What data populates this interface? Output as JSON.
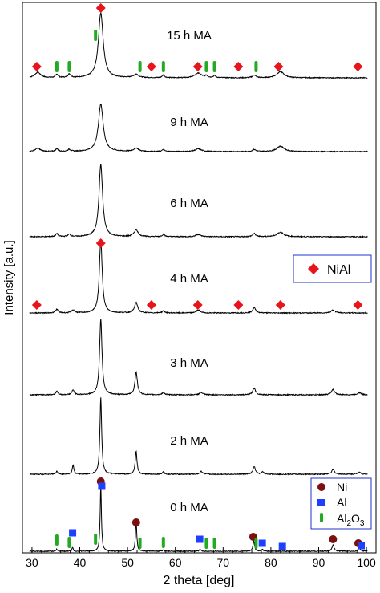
{
  "chart_data": {
    "type": "line",
    "xlabel": "2 theta [deg]",
    "ylabel": "Intensity [a.u.]",
    "xlim": [
      28,
      102
    ],
    "xticks": [
      30,
      40,
      50,
      60,
      70,
      80,
      90,
      100
    ],
    "grid": false,
    "colors": {
      "nial": "#e8141c",
      "ni": "#7a1010",
      "al": "#1f3fff",
      "al2o3": "#22aa22",
      "line": "#000000"
    },
    "series": [
      {
        "name": "15 h MA",
        "peaks": [
          {
            "x": 31.2,
            "h": 0.08,
            "w": 0.7
          },
          {
            "x": 35.2,
            "h": 0.05,
            "w": 0.3
          },
          {
            "x": 37.8,
            "h": 0.05,
            "w": 0.35
          },
          {
            "x": 44.4,
            "h": 0.95,
            "w": 0.6
          },
          {
            "x": 51.8,
            "h": 0.05,
            "w": 0.6
          },
          {
            "x": 57.5,
            "h": 0.04,
            "w": 0.3
          },
          {
            "x": 64.8,
            "h": 0.07,
            "w": 0.8
          },
          {
            "x": 66.5,
            "h": 0.03,
            "w": 0.3
          },
          {
            "x": 68.2,
            "h": 0.03,
            "w": 0.3
          },
          {
            "x": 76.5,
            "h": 0.04,
            "w": 0.4
          },
          {
            "x": 82.0,
            "h": 0.09,
            "w": 0.9
          }
        ]
      },
      {
        "name": "9 h MA",
        "peaks": [
          {
            "x": 31.2,
            "h": 0.05,
            "w": 0.6
          },
          {
            "x": 35.2,
            "h": 0.04,
            "w": 0.3
          },
          {
            "x": 37.8,
            "h": 0.03,
            "w": 0.35
          },
          {
            "x": 44.4,
            "h": 0.7,
            "w": 0.6
          },
          {
            "x": 51.8,
            "h": 0.05,
            "w": 0.6
          },
          {
            "x": 57.5,
            "h": 0.03,
            "w": 0.3
          },
          {
            "x": 64.8,
            "h": 0.04,
            "w": 0.8
          },
          {
            "x": 76.5,
            "h": 0.03,
            "w": 0.4
          },
          {
            "x": 82.0,
            "h": 0.08,
            "w": 0.9
          }
        ]
      },
      {
        "name": "6 h MA",
        "peaks": [
          {
            "x": 35.2,
            "h": 0.04,
            "w": 0.3
          },
          {
            "x": 37.8,
            "h": 0.03,
            "w": 0.35
          },
          {
            "x": 44.4,
            "h": 0.95,
            "w": 0.45
          },
          {
            "x": 51.8,
            "h": 0.09,
            "w": 0.5
          },
          {
            "x": 57.5,
            "h": 0.03,
            "w": 0.3
          },
          {
            "x": 64.8,
            "h": 0.03,
            "w": 0.6
          },
          {
            "x": 76.5,
            "h": 0.04,
            "w": 0.4
          },
          {
            "x": 82.0,
            "h": 0.06,
            "w": 0.8
          }
        ]
      },
      {
        "name": "4 h MA",
        "peaks": [
          {
            "x": 35.2,
            "h": 0.05,
            "w": 0.3
          },
          {
            "x": 38.6,
            "h": 0.04,
            "w": 0.35
          },
          {
            "x": 44.4,
            "h": 1.0,
            "w": 0.35
          },
          {
            "x": 51.8,
            "h": 0.14,
            "w": 0.4
          },
          {
            "x": 57.5,
            "h": 0.03,
            "w": 0.3
          },
          {
            "x": 64.8,
            "h": 0.04,
            "w": 0.5
          },
          {
            "x": 76.5,
            "h": 0.07,
            "w": 0.4
          },
          {
            "x": 93.0,
            "h": 0.04,
            "w": 0.5
          }
        ]
      },
      {
        "name": "3 h MA",
        "peaks": [
          {
            "x": 35.2,
            "h": 0.05,
            "w": 0.25
          },
          {
            "x": 38.6,
            "h": 0.06,
            "w": 0.3
          },
          {
            "x": 44.4,
            "h": 1.0,
            "w": 0.3
          },
          {
            "x": 51.8,
            "h": 0.3,
            "w": 0.3
          },
          {
            "x": 57.5,
            "h": 0.03,
            "w": 0.3
          },
          {
            "x": 65.4,
            "h": 0.03,
            "w": 0.4
          },
          {
            "x": 76.5,
            "h": 0.09,
            "w": 0.35
          },
          {
            "x": 93.0,
            "h": 0.07,
            "w": 0.4
          },
          {
            "x": 98.5,
            "h": 0.03,
            "w": 0.4
          }
        ]
      },
      {
        "name": "2 h MA",
        "peaks": [
          {
            "x": 35.2,
            "h": 0.04,
            "w": 0.2
          },
          {
            "x": 38.6,
            "h": 0.12,
            "w": 0.2
          },
          {
            "x": 44.4,
            "h": 1.0,
            "w": 0.22
          },
          {
            "x": 51.8,
            "h": 0.3,
            "w": 0.22
          },
          {
            "x": 57.5,
            "h": 0.03,
            "w": 0.25
          },
          {
            "x": 65.4,
            "h": 0.04,
            "w": 0.3
          },
          {
            "x": 76.5,
            "h": 0.1,
            "w": 0.3
          },
          {
            "x": 78.3,
            "h": 0.03,
            "w": 0.3
          },
          {
            "x": 93.0,
            "h": 0.06,
            "w": 0.35
          },
          {
            "x": 98.5,
            "h": 0.03,
            "w": 0.35
          }
        ]
      },
      {
        "name": "0 h MA",
        "peaks": [
          {
            "x": 35.2,
            "h": 0.03,
            "w": 0.15
          },
          {
            "x": 38.5,
            "h": 0.06,
            "w": 0.15
          },
          {
            "x": 44.4,
            "h": 1.0,
            "w": 0.16
          },
          {
            "x": 51.8,
            "h": 0.48,
            "w": 0.16
          },
          {
            "x": 57.5,
            "h": 0.02,
            "w": 0.2
          },
          {
            "x": 65.2,
            "h": 0.03,
            "w": 0.2
          },
          {
            "x": 76.4,
            "h": 0.16,
            "w": 0.2
          },
          {
            "x": 78.2,
            "h": 0.03,
            "w": 0.2
          },
          {
            "x": 93.0,
            "h": 0.1,
            "w": 0.25
          },
          {
            "x": 98.5,
            "h": 0.05,
            "w": 0.25
          }
        ]
      }
    ],
    "markers": [
      {
        "curve": "15 h MA",
        "phase": "NiAl",
        "x": [
          31.0,
          44.4,
          55.0,
          64.7,
          73.2,
          81.6,
          98.2
        ]
      },
      {
        "curve": "15 h MA",
        "phase": "Al2O3",
        "x": [
          35.2,
          37.8,
          43.3,
          52.6,
          57.5,
          66.5,
          68.2,
          76.9
        ]
      },
      {
        "curve": "4 h MA",
        "phase": "NiAl",
        "x": [
          31.0,
          44.4,
          55.0,
          64.7,
          73.2,
          82.0,
          98.2
        ]
      },
      {
        "curve": "0 h MA",
        "phase": "Ni",
        "x": [
          44.4,
          51.8,
          76.3,
          93.0,
          98.3
        ]
      },
      {
        "curve": "0 h MA",
        "phase": "Al",
        "x": [
          38.5,
          44.6,
          65.1,
          78.2,
          82.4,
          98.9
        ]
      },
      {
        "curve": "0 h MA",
        "phase": "Al2O3",
        "x": [
          35.2,
          37.8,
          43.3,
          52.6,
          57.5,
          66.5,
          68.2,
          76.9
        ]
      }
    ],
    "legends": [
      {
        "position": "middle-right",
        "entries": [
          {
            "label": "NiAl",
            "symbol": "diamond",
            "color": "#e8141c"
          }
        ]
      },
      {
        "position": "bottom-right",
        "entries": [
          {
            "label": "Ni",
            "symbol": "circle",
            "color": "#7a1010"
          },
          {
            "label": "Al",
            "symbol": "square",
            "color": "#1f3fff"
          },
          {
            "label": "Al",
            "sub": "2",
            "label2": "O",
            "sub2": "3",
            "symbol": "bar",
            "color": "#22aa22"
          }
        ]
      }
    ]
  }
}
